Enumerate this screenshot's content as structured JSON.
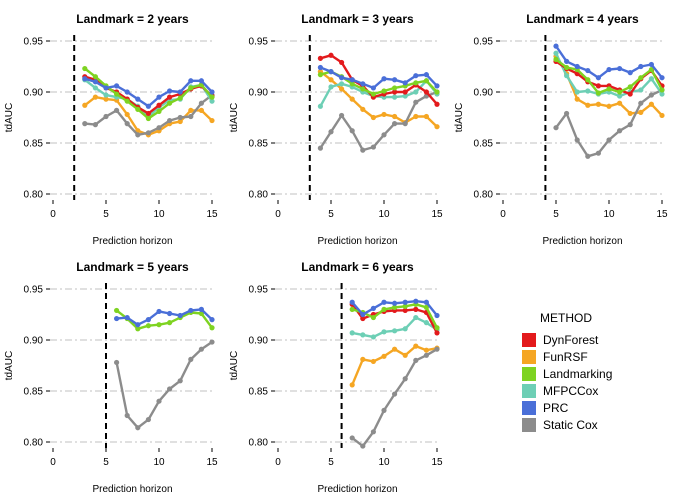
{
  "legend": {
    "title": "METHOD",
    "items": [
      {
        "name": "DynForest",
        "color": "#e31a1c"
      },
      {
        "name": "FunRSF",
        "color": "#f5a623"
      },
      {
        "name": "Landmarking",
        "color": "#7ed321"
      },
      {
        "name": "MFPCCox",
        "color": "#6dcfb5"
      },
      {
        "name": "PRC",
        "color": "#4a6fd8"
      },
      {
        "name": "Static Cox",
        "color": "#8c8c8c"
      }
    ]
  },
  "chart_data": [
    {
      "type": "line",
      "title": "Landmark = 2 years",
      "xlabel": "Prediction horizon",
      "ylabel": "tdAUC",
      "xlim": [
        0,
        15
      ],
      "ylim": [
        0.8,
        0.95
      ],
      "xticks": [
        0,
        5,
        10,
        15
      ],
      "yticks": [
        0.8,
        0.85,
        0.9,
        0.95
      ],
      "ytick_labels": [
        "0.80",
        "0.85",
        "0.90",
        "0.95"
      ],
      "grid": "horizontal-dashdot",
      "landmark": 2,
      "x": [
        3,
        4,
        5,
        6,
        7,
        8,
        9,
        10,
        11,
        12,
        13,
        14,
        15
      ],
      "series": [
        {
          "name": "FunRSF",
          "values": [
            0.887,
            0.895,
            0.893,
            0.892,
            0.878,
            0.862,
            0.858,
            0.862,
            0.869,
            0.871,
            0.882,
            0.882,
            0.872
          ]
        },
        {
          "name": "Static Cox",
          "values": [
            0.869,
            0.868,
            0.876,
            0.882,
            0.869,
            0.858,
            0.86,
            0.865,
            0.872,
            0.875,
            0.876,
            0.889,
            0.897
          ]
        },
        {
          "name": "MFPCCox",
          "values": [
            0.912,
            0.904,
            0.897,
            0.895,
            0.893,
            0.886,
            0.876,
            0.885,
            0.892,
            0.893,
            0.905,
            0.907,
            0.891
          ]
        },
        {
          "name": "DynForest",
          "values": [
            0.915,
            0.912,
            0.904,
            0.9,
            0.893,
            0.885,
            0.879,
            0.887,
            0.895,
            0.898,
            0.903,
            0.906,
            0.896
          ]
        },
        {
          "name": "Landmarking",
          "values": [
            0.923,
            0.915,
            0.906,
            0.898,
            0.891,
            0.883,
            0.874,
            0.881,
            0.889,
            0.894,
            0.904,
            0.907,
            0.895
          ]
        },
        {
          "name": "PRC",
          "values": [
            0.913,
            0.91,
            0.904,
            0.906,
            0.9,
            0.893,
            0.886,
            0.895,
            0.901,
            0.9,
            0.911,
            0.911,
            0.9
          ]
        }
      ]
    },
    {
      "type": "line",
      "title": "Landmark = 3 years",
      "xlabel": "Prediction horizon",
      "ylabel": "tdAUC",
      "xlim": [
        0,
        15
      ],
      "ylim": [
        0.8,
        0.95
      ],
      "xticks": [
        0,
        5,
        10,
        15
      ],
      "yticks": [
        0.8,
        0.85,
        0.9,
        0.95
      ],
      "ytick_labels": [
        "0.80",
        "0.85",
        "0.90",
        "0.95"
      ],
      "grid": "horizontal-dashdot",
      "landmark": 3,
      "x": [
        4,
        5,
        6,
        7,
        8,
        9,
        10,
        11,
        12,
        13,
        14,
        15
      ],
      "series": [
        {
          "name": "FunRSF",
          "values": [
            0.92,
            0.912,
            0.903,
            0.893,
            0.883,
            0.875,
            0.878,
            0.876,
            0.87,
            0.876,
            0.876,
            0.866
          ]
        },
        {
          "name": "Static Cox",
          "values": [
            0.845,
            0.861,
            0.877,
            0.862,
            0.843,
            0.846,
            0.858,
            0.869,
            0.869,
            0.89,
            0.896,
            0.9
          ]
        },
        {
          "name": "MFPCCox",
          "values": [
            0.886,
            0.905,
            0.908,
            0.905,
            0.9,
            0.896,
            0.895,
            0.895,
            0.896,
            0.9,
            0.911,
            0.898
          ]
        },
        {
          "name": "DynForest",
          "values": [
            0.933,
            0.936,
            0.929,
            0.912,
            0.906,
            0.895,
            0.898,
            0.9,
            0.9,
            0.907,
            0.9,
            0.888
          ]
        },
        {
          "name": "Landmarking",
          "values": [
            0.917,
            0.92,
            0.915,
            0.908,
            0.903,
            0.898,
            0.901,
            0.904,
            0.906,
            0.909,
            0.911,
            0.9
          ]
        },
        {
          "name": "PRC",
          "values": [
            0.924,
            0.92,
            0.914,
            0.912,
            0.908,
            0.904,
            0.913,
            0.912,
            0.909,
            0.916,
            0.917,
            0.906
          ]
        }
      ]
    },
    {
      "type": "line",
      "title": "Landmark = 4 years",
      "xlabel": "Prediction horizon",
      "ylabel": "tdAUC",
      "xlim": [
        0,
        15
      ],
      "ylim": [
        0.8,
        0.95
      ],
      "xticks": [
        0,
        5,
        10,
        15
      ],
      "yticks": [
        0.8,
        0.85,
        0.9,
        0.95
      ],
      "ytick_labels": [
        "0.80",
        "0.85",
        "0.90",
        "0.95"
      ],
      "grid": "horizontal-dashdot",
      "landmark": 4,
      "x": [
        5,
        6,
        7,
        8,
        9,
        10,
        11,
        12,
        13,
        14,
        15
      ],
      "series": [
        {
          "name": "FunRSF",
          "values": [
            0.935,
            0.918,
            0.893,
            0.887,
            0.888,
            0.886,
            0.889,
            0.879,
            0.88,
            0.888,
            0.877
          ]
        },
        {
          "name": "Static Cox",
          "values": [
            0.865,
            0.879,
            0.853,
            0.837,
            0.84,
            0.853,
            0.862,
            0.868,
            0.889,
            0.897,
            0.902
          ]
        },
        {
          "name": "MFPCCox",
          "values": [
            0.938,
            0.916,
            0.9,
            0.901,
            0.898,
            0.9,
            0.896,
            0.9,
            0.902,
            0.913,
            0.898
          ]
        },
        {
          "name": "DynForest",
          "values": [
            0.93,
            0.923,
            0.918,
            0.91,
            0.906,
            0.906,
            0.902,
            0.898,
            0.913,
            0.921,
            0.906
          ]
        },
        {
          "name": "Landmarking",
          "values": [
            0.932,
            0.924,
            0.922,
            0.912,
            0.899,
            0.903,
            0.9,
            0.905,
            0.914,
            0.922,
            0.902
          ]
        },
        {
          "name": "PRC",
          "values": [
            0.945,
            0.93,
            0.925,
            0.921,
            0.914,
            0.922,
            0.923,
            0.919,
            0.925,
            0.927,
            0.914
          ]
        }
      ]
    },
    {
      "type": "line",
      "title": "Landmark = 5 years",
      "xlabel": "Prediction horizon",
      "ylabel": "tdAUC",
      "xlim": [
        0,
        15
      ],
      "ylim": [
        0.8,
        0.95
      ],
      "xticks": [
        0,
        5,
        10,
        15
      ],
      "yticks": [
        0.8,
        0.85,
        0.9,
        0.95
      ],
      "ytick_labels": [
        "0.80",
        "0.85",
        "0.90",
        "0.95"
      ],
      "grid": "horizontal-dashdot",
      "landmark": 5,
      "x": [
        6,
        7,
        8,
        9,
        10,
        11,
        12,
        13,
        14,
        15
      ],
      "series": [
        {
          "name": "Static Cox",
          "values": [
            0.878,
            0.826,
            0.814,
            0.822,
            0.84,
            0.852,
            0.86,
            0.881,
            0.891,
            0.898
          ]
        },
        {
          "name": "Landmarking",
          "values": [
            0.929,
            0.921,
            0.911,
            0.914,
            0.915,
            0.917,
            0.922,
            0.927,
            0.926,
            0.912
          ]
        },
        {
          "name": "PRC",
          "values": [
            0.921,
            0.922,
            0.915,
            0.92,
            0.928,
            0.926,
            0.924,
            0.929,
            0.93,
            0.92
          ]
        }
      ]
    },
    {
      "type": "line",
      "title": "Landmark = 6 years",
      "xlabel": "Prediction horizon",
      "ylabel": "tdAUC",
      "xlim": [
        0,
        15
      ],
      "ylim": [
        0.8,
        0.95
      ],
      "xticks": [
        0,
        5,
        10,
        15
      ],
      "yticks": [
        0.8,
        0.85,
        0.9,
        0.95
      ],
      "ytick_labels": [
        "0.80",
        "0.85",
        "0.90",
        "0.95"
      ],
      "grid": "horizontal-dashdot",
      "landmark": 6,
      "x": [
        7,
        8,
        9,
        10,
        11,
        12,
        13,
        14,
        15
      ],
      "series": [
        {
          "name": "FunRSF",
          "values": [
            0.856,
            0.881,
            0.879,
            0.884,
            0.891,
            0.885,
            0.894,
            0.89,
            0.892
          ]
        },
        {
          "name": "Static Cox",
          "values": [
            0.804,
            0.796,
            0.81,
            0.831,
            0.847,
            0.862,
            0.88,
            0.885,
            0.891
          ]
        },
        {
          "name": "MFPCCox",
          "values": [
            0.907,
            0.905,
            0.903,
            0.908,
            0.909,
            0.911,
            0.922,
            0.917,
            0.91
          ]
        },
        {
          "name": "DynForest",
          "values": [
            0.935,
            0.921,
            0.925,
            0.928,
            0.929,
            0.929,
            0.93,
            0.927,
            0.907
          ]
        },
        {
          "name": "Landmarking",
          "values": [
            0.93,
            0.927,
            0.922,
            0.93,
            0.932,
            0.933,
            0.935,
            0.932,
            0.912
          ]
        },
        {
          "name": "PRC",
          "values": [
            0.937,
            0.925,
            0.931,
            0.937,
            0.936,
            0.937,
            0.938,
            0.937,
            0.924
          ]
        }
      ]
    }
  ]
}
